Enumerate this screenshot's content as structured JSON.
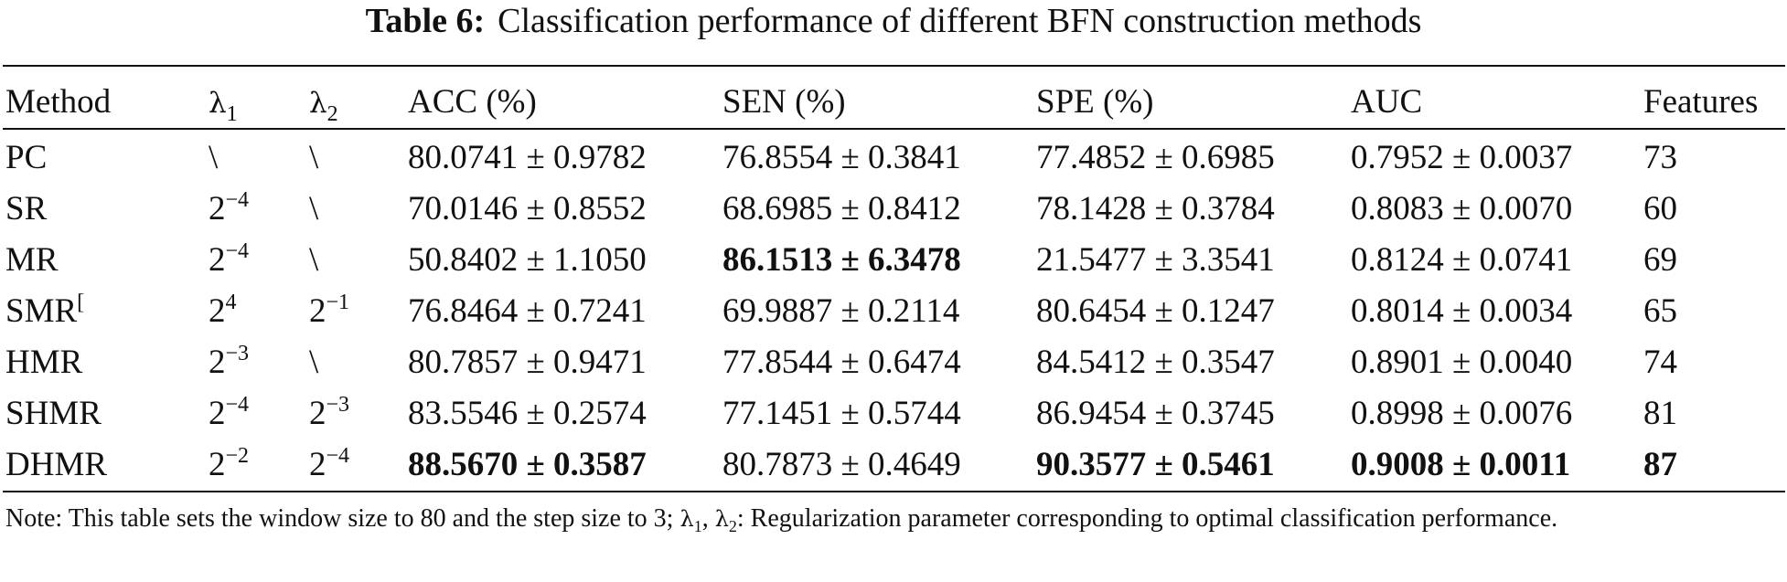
{
  "caption": {
    "label": "Table 6:",
    "title": "Classification performance of different BFN construction methods"
  },
  "header": {
    "method": "Method",
    "lambda1": {
      "symbol": "λ",
      "sub": "1"
    },
    "lambda2": {
      "symbol": "λ",
      "sub": "2"
    },
    "acc": "ACC (%)",
    "sen": "SEN (%)",
    "spe": "SPE (%)",
    "auc": "AUC",
    "features": "Features"
  },
  "rows": [
    {
      "method": "PC",
      "l1": "\\",
      "l2": "\\",
      "acc": "80.0741 ± 0.9782",
      "sen": "76.8554 ± 0.3841",
      "spe": "77.4852 ± 0.6985",
      "auc": "0.7952 ± 0.0037",
      "features": "73"
    },
    {
      "method": "SR",
      "l1": {
        "base": "2",
        "exp": "−4"
      },
      "l2": "\\",
      "acc": "70.0146 ± 0.8552",
      "sen": "68.6985 ± 0.8412",
      "spe": "78.1428 ± 0.3784",
      "auc": "0.8083 ± 0.0070",
      "features": "60"
    },
    {
      "method": "MR",
      "l1": {
        "base": "2",
        "exp": "−4"
      },
      "l2": "\\",
      "acc": "50.8402 ± 1.1050",
      "sen": "86.1513 ± 6.3478",
      "spe": "21.5477 ± 3.3541",
      "auc": "0.8124 ± 0.0741",
      "features": "69"
    },
    {
      "method": "SMR",
      "method_sup": "[",
      "l1": {
        "base": "2",
        "exp": "4"
      },
      "l2": {
        "base": "2",
        "exp": "−1"
      },
      "acc": "76.8464 ± 0.7241",
      "sen": "69.9887 ± 0.2114",
      "spe": "80.6454 ± 0.1247",
      "auc": "0.8014 ± 0.0034",
      "features": "65"
    },
    {
      "method": "HMR",
      "l1": {
        "base": "2",
        "exp": "−3"
      },
      "l2": "\\",
      "acc": "80.7857 ± 0.9471",
      "sen": "77.8544 ± 0.6474",
      "spe": "84.5412 ± 0.3547",
      "auc": "0.8901 ± 0.0040",
      "features": "74"
    },
    {
      "method": "SHMR",
      "l1": {
        "base": "2",
        "exp": "−4"
      },
      "l2": {
        "base": "2",
        "exp": "−3"
      },
      "acc": "83.5546 ± 0.2574",
      "sen": "77.1451 ± 0.5744",
      "spe": "86.9454 ± 0.3745",
      "auc": "0.8998 ± 0.0076",
      "features": "81"
    },
    {
      "method": "DHMR",
      "l1": {
        "base": "2",
        "exp": "−2"
      },
      "l2": {
        "base": "2",
        "exp": "−4"
      },
      "acc": "88.5670 ± 0.3587",
      "sen": "80.7873 ± 0.4649",
      "spe": "90.3577 ± 0.5461",
      "auc": "0.9008 ± 0.0011",
      "features": "87"
    }
  ],
  "note": {
    "prefix": "Note: This table sets the window size to 80 and the step size to 3; ",
    "lambda_symbol": "λ",
    "sub1": "1",
    "sep": ", ",
    "sub2": "2",
    "suffix": ": Regularization parameter corresponding to optimal classification performance."
  }
}
